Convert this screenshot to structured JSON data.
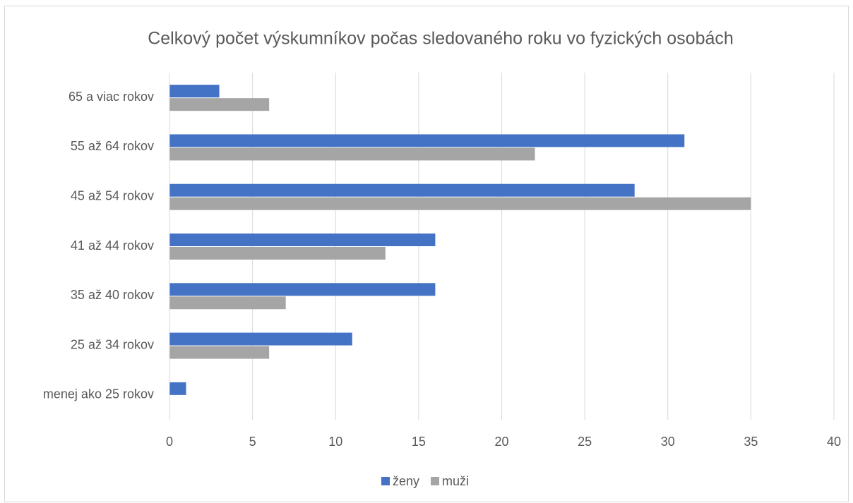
{
  "chart_data": {
    "type": "bar",
    "orientation": "horizontal",
    "title": "Celkový počet výskumníkov počas sledovaného roku vo fyzických osobách",
    "categories": [
      "65 a viac rokov",
      "55 až 64 rokov",
      "45 až 54 rokov",
      "41 až 44 rokov",
      "35 až 40 rokov",
      "25 až 34 rokov",
      "menej ako 25 rokov"
    ],
    "series": [
      {
        "name": "ženy",
        "color": "#4472c4",
        "values": [
          3,
          31,
          28,
          16,
          16,
          11,
          1
        ]
      },
      {
        "name": "muži",
        "color": "#a5a5a5",
        "values": [
          6,
          22,
          35,
          13,
          7,
          6,
          0
        ]
      }
    ],
    "xlim": [
      0,
      40
    ],
    "xticks": [
      0,
      5,
      10,
      15,
      20,
      25,
      30,
      35,
      40
    ],
    "grid": true,
    "legend": "bottom"
  }
}
